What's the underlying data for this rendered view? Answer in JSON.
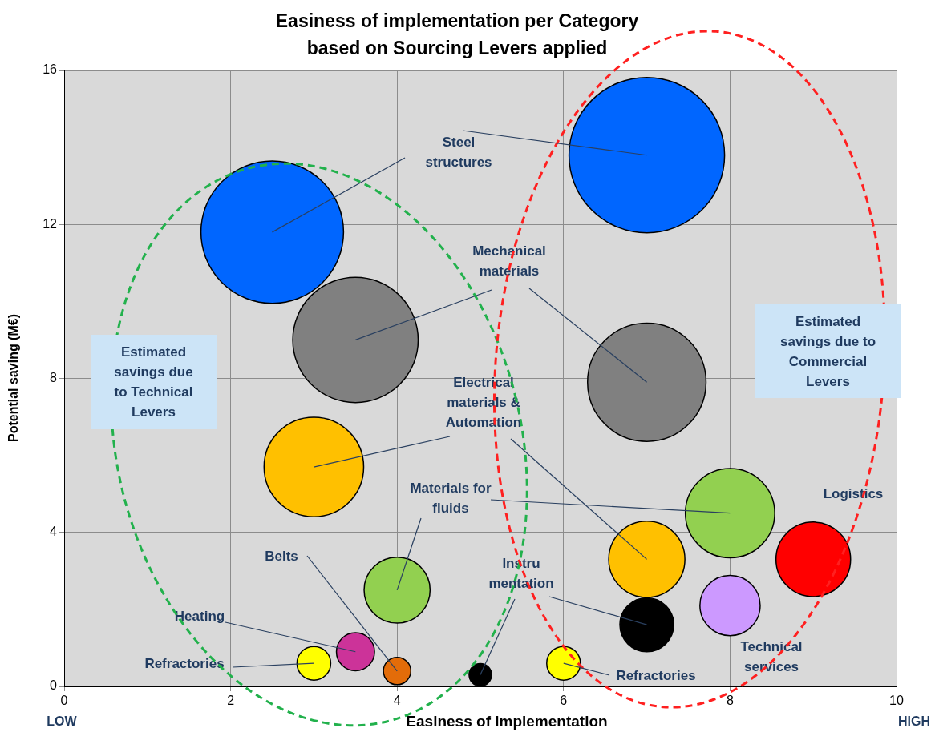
{
  "chart_data": {
    "type": "bubble",
    "title": "Easiness of implementation per Category based on Sourcing Levers applied",
    "xlabel": "Easiness of implementation",
    "ylabel": "Potential saving (M€)",
    "xlim": [
      0,
      10
    ],
    "ylim": [
      0,
      16
    ],
    "xticks": [
      0,
      2,
      4,
      6,
      8,
      10
    ],
    "yticks": [
      0,
      4,
      8,
      12,
      16
    ],
    "grid": true,
    "legend": false,
    "annotations": [
      "Estimated savings due to Technical Levers",
      "Estimated savings due to Commercial Levers",
      "LOW",
      "HIGH"
    ],
    "series": [
      {
        "name": "Steel structures",
        "color": "#0066ff",
        "x": [
          2.5,
          7
        ],
        "values": [
          11.8,
          13.8
        ],
        "sizes": [
          0.84,
          1
        ]
      },
      {
        "name": "Mechanical materials",
        "color": "#808080",
        "x": [
          3.5,
          7
        ],
        "values": [
          9.0,
          7.9
        ],
        "sizes": [
          0.65,
          0.58
        ]
      },
      {
        "name": "Electrical materials & Automation",
        "color": "#ffc000",
        "x": [
          3,
          7
        ],
        "values": [
          5.7,
          3.3
        ],
        "sizes": [
          0.41,
          0.24
        ]
      },
      {
        "name": "Materials for fluids",
        "color": "#92d050",
        "x": [
          4,
          8
        ],
        "values": [
          2.5,
          4.5
        ],
        "sizes": [
          0.18,
          0.33
        ]
      },
      {
        "name": "Logistics",
        "color": "#ff0000",
        "x": [
          9
        ],
        "values": [
          3.3
        ],
        "sizes": [
          0.23
        ]
      },
      {
        "name": "Technical services",
        "color": "#cc99ff",
        "x": [
          8
        ],
        "values": [
          2.1
        ],
        "sizes": [
          0.15
        ]
      },
      {
        "name": "Instru mentation",
        "color": "#000000",
        "x": [
          5,
          7
        ],
        "values": [
          0.3,
          1.6
        ],
        "sizes": [
          0.021,
          0.12
        ]
      },
      {
        "name": "Heating",
        "color": "#cc3399",
        "x": [
          3.5
        ],
        "values": [
          0.9
        ],
        "sizes": [
          0.06
        ]
      },
      {
        "name": "Belts",
        "color": "#e36c09",
        "x": [
          4
        ],
        "values": [
          0.4
        ],
        "sizes": [
          0.031
        ]
      },
      {
        "name": "Refractories",
        "color": "#ffff00",
        "x": [
          3,
          6
        ],
        "values": [
          0.6,
          0.6
        ],
        "sizes": [
          0.047,
          0.047
        ]
      }
    ]
  }
}
